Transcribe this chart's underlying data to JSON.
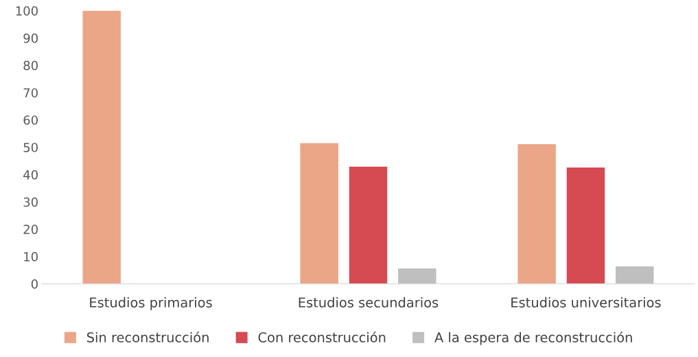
{
  "chart_data": {
    "type": "bar",
    "categories": [
      "Estudios primarios",
      "Estudios secundarios",
      "Estudios universitarios"
    ],
    "series": [
      {
        "name": "Sin reconstrucción",
        "color": "#eba688",
        "values": [
          100,
          51.5,
          51.1
        ]
      },
      {
        "name": "Con reconstrucción",
        "color": "#d64a52",
        "values": [
          0,
          42.9,
          42.6
        ]
      },
      {
        "name": "A la espera de reconstrucción",
        "color": "#bfbfbf",
        "values": [
          0,
          5.6,
          6.4
        ]
      }
    ],
    "ylim": [
      0,
      100
    ],
    "yticks": [
      0,
      10,
      20,
      30,
      40,
      50,
      60,
      70,
      80,
      90,
      100
    ],
    "grid": false,
    "legend": "bottom"
  }
}
